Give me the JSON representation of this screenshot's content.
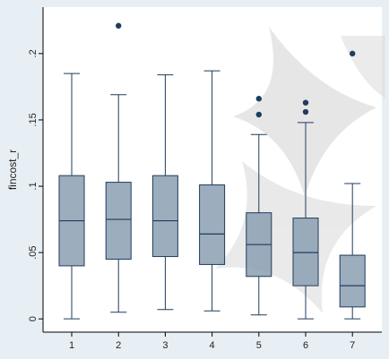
{
  "chart_data": {
    "type": "box",
    "ylabel": "fincost_r",
    "xlabel": "",
    "ylim": [
      -0.01,
      0.235
    ],
    "y_ticks": [
      0,
      0.05,
      0.1,
      0.15,
      0.2
    ],
    "y_tick_labels": [
      "0",
      ".05",
      ".1",
      ".15",
      ".2"
    ],
    "categories": [
      "1",
      "2",
      "3",
      "4",
      "5",
      "6",
      "7"
    ],
    "boxes": [
      {
        "category": "1",
        "min": 0.0,
        "q1": 0.04,
        "median": 0.074,
        "q3": 0.108,
        "max": 0.185,
        "outliers": []
      },
      {
        "category": "2",
        "min": 0.005,
        "q1": 0.045,
        "median": 0.075,
        "q3": 0.103,
        "max": 0.169,
        "outliers": [
          0.221
        ]
      },
      {
        "category": "3",
        "min": 0.007,
        "q1": 0.047,
        "median": 0.074,
        "q3": 0.108,
        "max": 0.184,
        "outliers": []
      },
      {
        "category": "4",
        "min": 0.006,
        "q1": 0.041,
        "median": 0.064,
        "q3": 0.101,
        "max": 0.187,
        "outliers": []
      },
      {
        "category": "5",
        "min": 0.003,
        "q1": 0.032,
        "median": 0.056,
        "q3": 0.08,
        "max": 0.139,
        "outliers": [
          0.154,
          0.166
        ]
      },
      {
        "category": "6",
        "min": 0.0,
        "q1": 0.025,
        "median": 0.05,
        "q3": 0.076,
        "max": 0.148,
        "outliers": [
          0.156,
          0.163
        ]
      },
      {
        "category": "7",
        "min": 0.0,
        "q1": 0.009,
        "median": 0.025,
        "q3": 0.048,
        "max": 0.102,
        "outliers": [
          0.2
        ]
      }
    ],
    "grid": false,
    "colors": {
      "outer_background": "#e8eff4",
      "plot_background": "#ffffff",
      "box_fill": "#8b9fb3",
      "box_stroke": "#1f3d5c",
      "whisker": "#1f3d5c",
      "outlier": "#1f3d5c",
      "axis": "#000000",
      "watermark": "#cfcfcf"
    }
  }
}
